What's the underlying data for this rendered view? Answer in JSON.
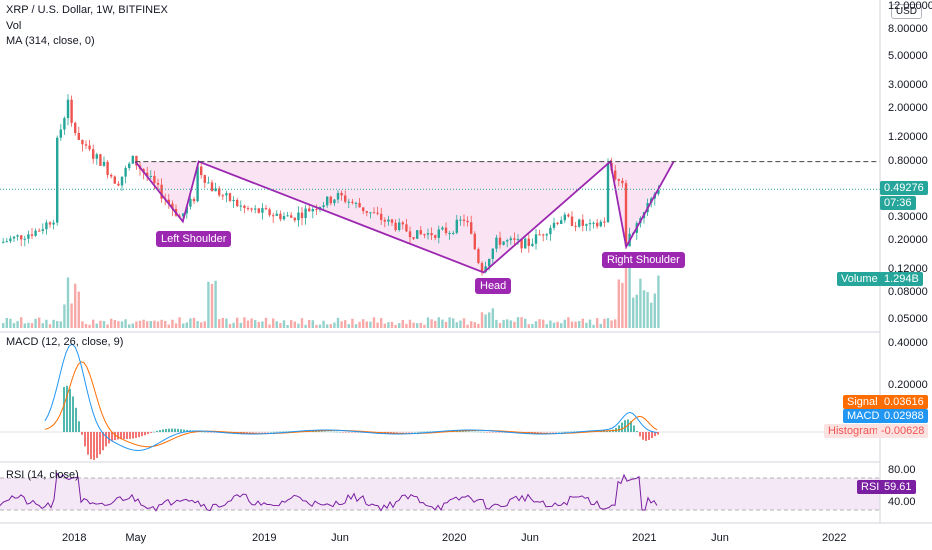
{
  "header": {
    "symbol": "XRP / U.S. Dollar, 1W, BITFINEX",
    "vol": "Vol",
    "ma": "MA (314, close, 0)",
    "currency": "USD"
  },
  "annotations": {
    "left_shoulder": "Left Shoulder",
    "head": "Head",
    "right_shoulder": "Right Shoulder"
  },
  "price_axis": {
    "ticks": [
      "12.00000",
      "8.00000",
      "5.00000",
      "3.00000",
      "2.00000",
      "1.20000",
      "0.80000",
      "0.30000",
      "0.20000",
      "0.12000",
      "0.08000",
      "0.05000"
    ],
    "last_price": "0.49276",
    "countdown": "07:36",
    "volume_label": "Volume",
    "volume_value": "1.294B",
    "last_price_color": "#26a69a"
  },
  "macd_panel": {
    "title": "MACD (12, 26, close, 9)",
    "ticks": [
      "0.40000",
      "0.20000"
    ],
    "signal_label": "Signal",
    "signal_value": "0.03616",
    "macd_label": "MACD",
    "macd_value": "0.02988",
    "hist_label": "Histogram",
    "hist_value": "-0.00628",
    "signal_color": "#ff6d00",
    "macd_color": "#2196f3"
  },
  "rsi_panel": {
    "title": "RSI (14, close)",
    "ticks": [
      "80.00",
      "40.00"
    ],
    "rsi_label": "RSI",
    "rsi_value": "59.61",
    "color": "#7b1fa2"
  },
  "time_axis": {
    "labels": [
      "2018",
      "May",
      "2019",
      "Jun",
      "2020",
      "Jun",
      "2021",
      "Jun",
      "2022"
    ]
  },
  "chart_data": {
    "type": "candlestick",
    "scale": "log",
    "colors": {
      "up": "#26a69a",
      "down": "#ef5350",
      "pattern": "#9c27b0"
    },
    "price_path": [
      [
        "2017-07",
        0.17
      ],
      [
        "2017-09",
        0.2
      ],
      [
        "2017-11",
        0.24
      ],
      [
        "2017-12",
        0.3
      ],
      [
        "2017-12",
        0.9
      ],
      [
        "2018-01",
        2.5
      ],
      [
        "2018-01",
        1.6
      ],
      [
        "2018-02",
        1.0
      ],
      [
        "2018-03",
        0.8
      ],
      [
        "2018-04",
        0.55
      ],
      [
        "2018-05",
        0.83
      ],
      [
        "2018-06",
        0.6
      ],
      [
        "2018-08",
        0.3
      ],
      [
        "2018-09",
        0.45
      ],
      [
        "2018-09",
        0.75
      ],
      [
        "2018-10",
        0.5
      ],
      [
        "2018-12",
        0.35
      ],
      [
        "2019-03",
        0.3
      ],
      [
        "2019-06",
        0.44
      ],
      [
        "2019-07",
        0.38
      ],
      [
        "2019-09",
        0.28
      ],
      [
        "2019-11",
        0.22
      ],
      [
        "2020-01",
        0.24
      ],
      [
        "2020-02",
        0.3
      ],
      [
        "2020-03",
        0.12
      ],
      [
        "2020-04",
        0.2
      ],
      [
        "2020-06",
        0.19
      ],
      [
        "2020-08",
        0.3
      ],
      [
        "2020-10",
        0.25
      ],
      [
        "2020-11",
        0.3
      ],
      [
        "2020-11",
        0.75
      ],
      [
        "2020-12",
        0.5
      ],
      [
        "2020-12",
        0.18
      ],
      [
        "2021-01",
        0.3
      ],
      [
        "2021-02",
        0.49
      ]
    ],
    "neckline": 0.8,
    "pattern_points": [
      {
        "name": "Left Shoulder start",
        "date": "2018-05",
        "price": 0.8
      },
      {
        "name": "Left Shoulder",
        "date": "2018-08",
        "price": 0.28
      },
      {
        "name": "Neckline",
        "date": "2018-09",
        "price": 0.8
      },
      {
        "name": "Head",
        "date": "2020-03",
        "price": 0.115
      },
      {
        "name": "Neckline",
        "date": "2020-11",
        "price": 0.8
      },
      {
        "name": "Right Shoulder",
        "date": "2020-12",
        "price": 0.18
      },
      {
        "name": "Target",
        "date": "2021-03",
        "price": 0.8
      }
    ]
  }
}
